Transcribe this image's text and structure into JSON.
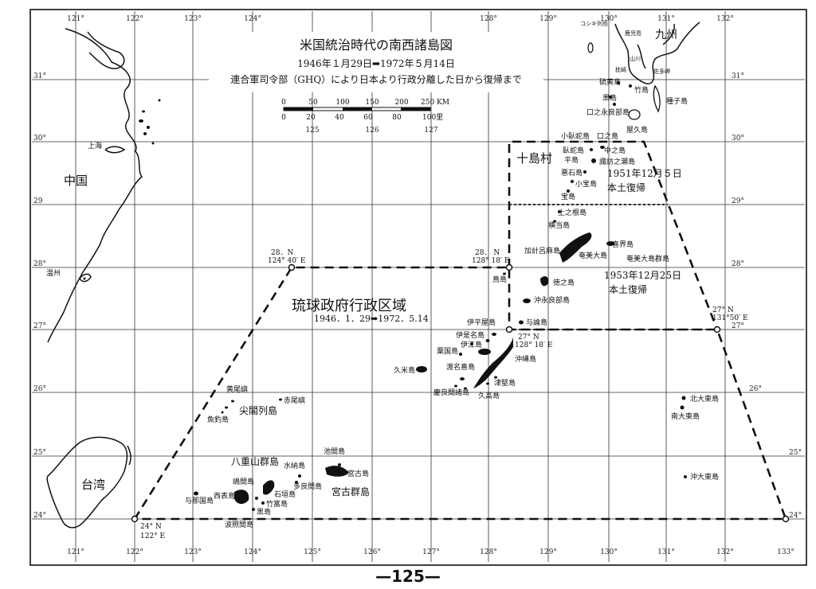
{
  "title": "米国統治時代の南西諸島図",
  "dates": "1946年１月29日➡1972年５月14日",
  "subtitle": "連合軍司令部（GHQ）により日本より行政分離した日から復帰まで",
  "scale": {
    "km_ticks": [
      "0",
      "50",
      "100",
      "150",
      "200",
      "250 KM"
    ],
    "ri_ticks": [
      "0",
      "20",
      "40",
      "60",
      "80",
      "100里"
    ]
  },
  "longitudes_bottom": [
    "121°",
    "122°",
    "123°",
    "124°",
    "125°",
    "126°",
    "127°",
    "128°",
    "129°",
    "130°",
    "131°",
    "132°",
    "133°"
  ],
  "longitudes_top": [
    "121°",
    "122°",
    "123°",
    "124°",
    "128°",
    "129°",
    "130°",
    "131°",
    "132°"
  ],
  "longitudes_mid": [
    "125",
    "126",
    "127"
  ],
  "latitudes_left": [
    "31°",
    "30°",
    "29",
    "28°",
    "27°",
    "26°",
    "25°",
    "24°"
  ],
  "latitudes_right": [
    "31°",
    "30°",
    "29°",
    "28°",
    "27°",
    "26°",
    "25°",
    "24°"
  ],
  "regions": {
    "ryukyu_gov": "琉球政府行政区域",
    "ryukyu_dates": "1946．1．29➡1972．5.14",
    "toshima": "十島村",
    "toshima_return": [
      "1951年12月５日",
      "本土復帰"
    ],
    "amami_return": [
      "1953年12月25日",
      "本土復帰"
    ],
    "kyushu": "九州",
    "china": "中国",
    "taiwan": "台湾",
    "senkaku": "尖閣列島",
    "yaeyama": "八重山群島",
    "miyako": "宮古群島",
    "amami": "奄美大島群島"
  },
  "boundary_points": [
    {
      "lat": "28．N",
      "lon": "124° 40′ E"
    },
    {
      "lat": "28． N",
      "lon": "128° 18′ E"
    },
    {
      "lat": "27° N",
      "lon": "128° 18′ E"
    },
    {
      "lat": "27° N",
      "lon": "131°50′ E"
    },
    {
      "lat": "24° N",
      "lon": "122°  E"
    }
  ],
  "places": {
    "shanghai": "上海",
    "wenzhou": "温州",
    "koshiki": "コシキ列島",
    "kagoshima": "鹿児島",
    "yamakawa": "山川",
    "makurazaki": "枕崎",
    "satamisaki": "佐多岬",
    "iojima": "硫黄島",
    "takeshima": "竹島",
    "kuroshima_n": "黒島",
    "tanegashima": "種子島",
    "kuchinoerabu": "口之永良部島",
    "yakushima": "屋久島",
    "kotakara_kuchino": "小臥蛇島　口之島",
    "gajajima": "臥蛇島",
    "nakanoshima": "中之島",
    "tairajima": "平島",
    "suwanose": "諏訪之瀬島",
    "akusekijima": "悪石島",
    "kodakara": "小宝島",
    "takarajima": "宝島",
    "kaminone": "上之根島",
    "yokoate": "横当島",
    "kikaijima": "喜界島",
    "kakeroma": "加計呂麻島",
    "amami_oshima": "奄美大島",
    "torishima": "鳥島",
    "tokunoshima": "徳之島",
    "okinoerabu": "沖永良部島",
    "yoron": "与論島",
    "iheya": "伊平屋島",
    "izena": "伊是名島",
    "iejima": "伊江島",
    "aguni": "粟国島",
    "kumejima": "久米島",
    "tonaki": "渡名喜島",
    "keramashoto": "慶良間諸島",
    "okinawa": "沖縄島",
    "tsuken": "津堅島",
    "kudaka": "久高島",
    "kitadaito": "北大東島",
    "minamidaito": "南大東島",
    "okidaito": "沖大東島",
    "kobisho": "黄尾嶼",
    "sekibisho": "赤尾嶼",
    "uotsuri": "魚釣島",
    "ikema": "池間島",
    "miyakojima": "宮古島",
    "minna": "水納島",
    "tarama": "多良間島",
    "ishigaki": "石垣島",
    "iriomote": "西表島",
    "yonaguni": "与那国島",
    "kohama": "嶋間島",
    "taketomi": "竹富島",
    "kuroshima_s": "黒島",
    "hateruma": "波照間島"
  },
  "page_number": "—125—"
}
